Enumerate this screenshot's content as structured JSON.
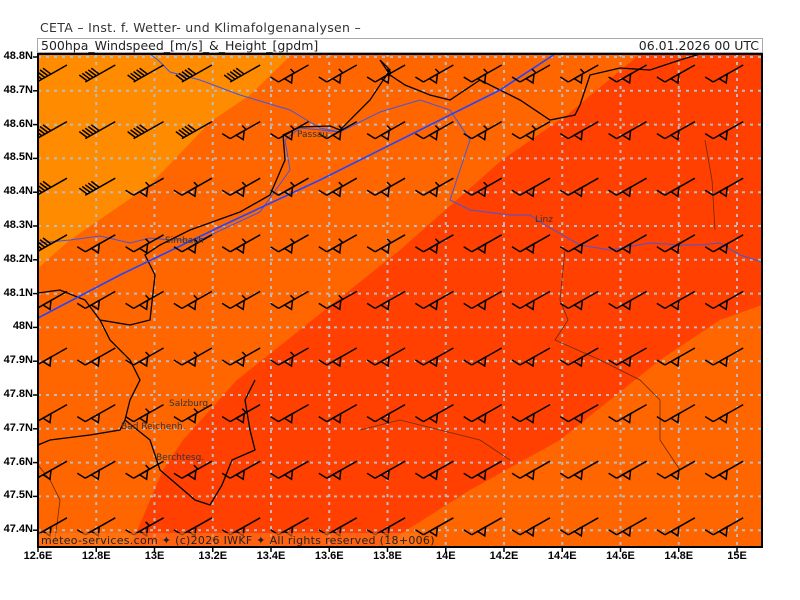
{
  "header": {
    "institute": "CETA – Inst. f. Wetter- und Klimafolgenanalysen –"
  },
  "titlebar": {
    "parameter": "500hpa_Windspeed_[m/s]_&_Height_[gpdm]",
    "valid_time": "06.01.2026 00 UTC"
  },
  "axes": {
    "lat_labels": [
      "48.8N",
      "48.7N",
      "48.6N",
      "48.5N",
      "48.4N",
      "48.3N",
      "48.2N",
      "48.1N",
      "48N",
      "47.9N",
      "47.8N",
      "47.7N",
      "47.6N",
      "47.5N",
      "47.4N"
    ],
    "lon_labels": [
      "12.6E",
      "12.8E",
      "13E",
      "13.2E",
      "13.4E",
      "13.6E",
      "13.8E",
      "14E",
      "14.2E",
      "14.4E",
      "14.6E",
      "14.8E",
      "15E"
    ]
  },
  "cities": [
    {
      "name": "Passau"
    },
    {
      "name": "Simbach"
    },
    {
      "name": "Linz"
    },
    {
      "name": "Salzburg"
    },
    {
      "name": "Bad Reichenh."
    },
    {
      "name": "Berchtesg."
    }
  ],
  "footer": {
    "copyright": "meteo-services.com ✦ (c)2026 IWKF ✦ All rights reserved (18+006)"
  },
  "colors": {
    "windspeed_low": "#ff8c00",
    "windspeed_mid": "#ff6600",
    "windspeed_high": "#ff4000",
    "height_contour": "#2244ff",
    "rivers": "#4455dd",
    "borders": "#000000"
  },
  "icons": {
    "wind_barb": "wind-barb-icon"
  }
}
